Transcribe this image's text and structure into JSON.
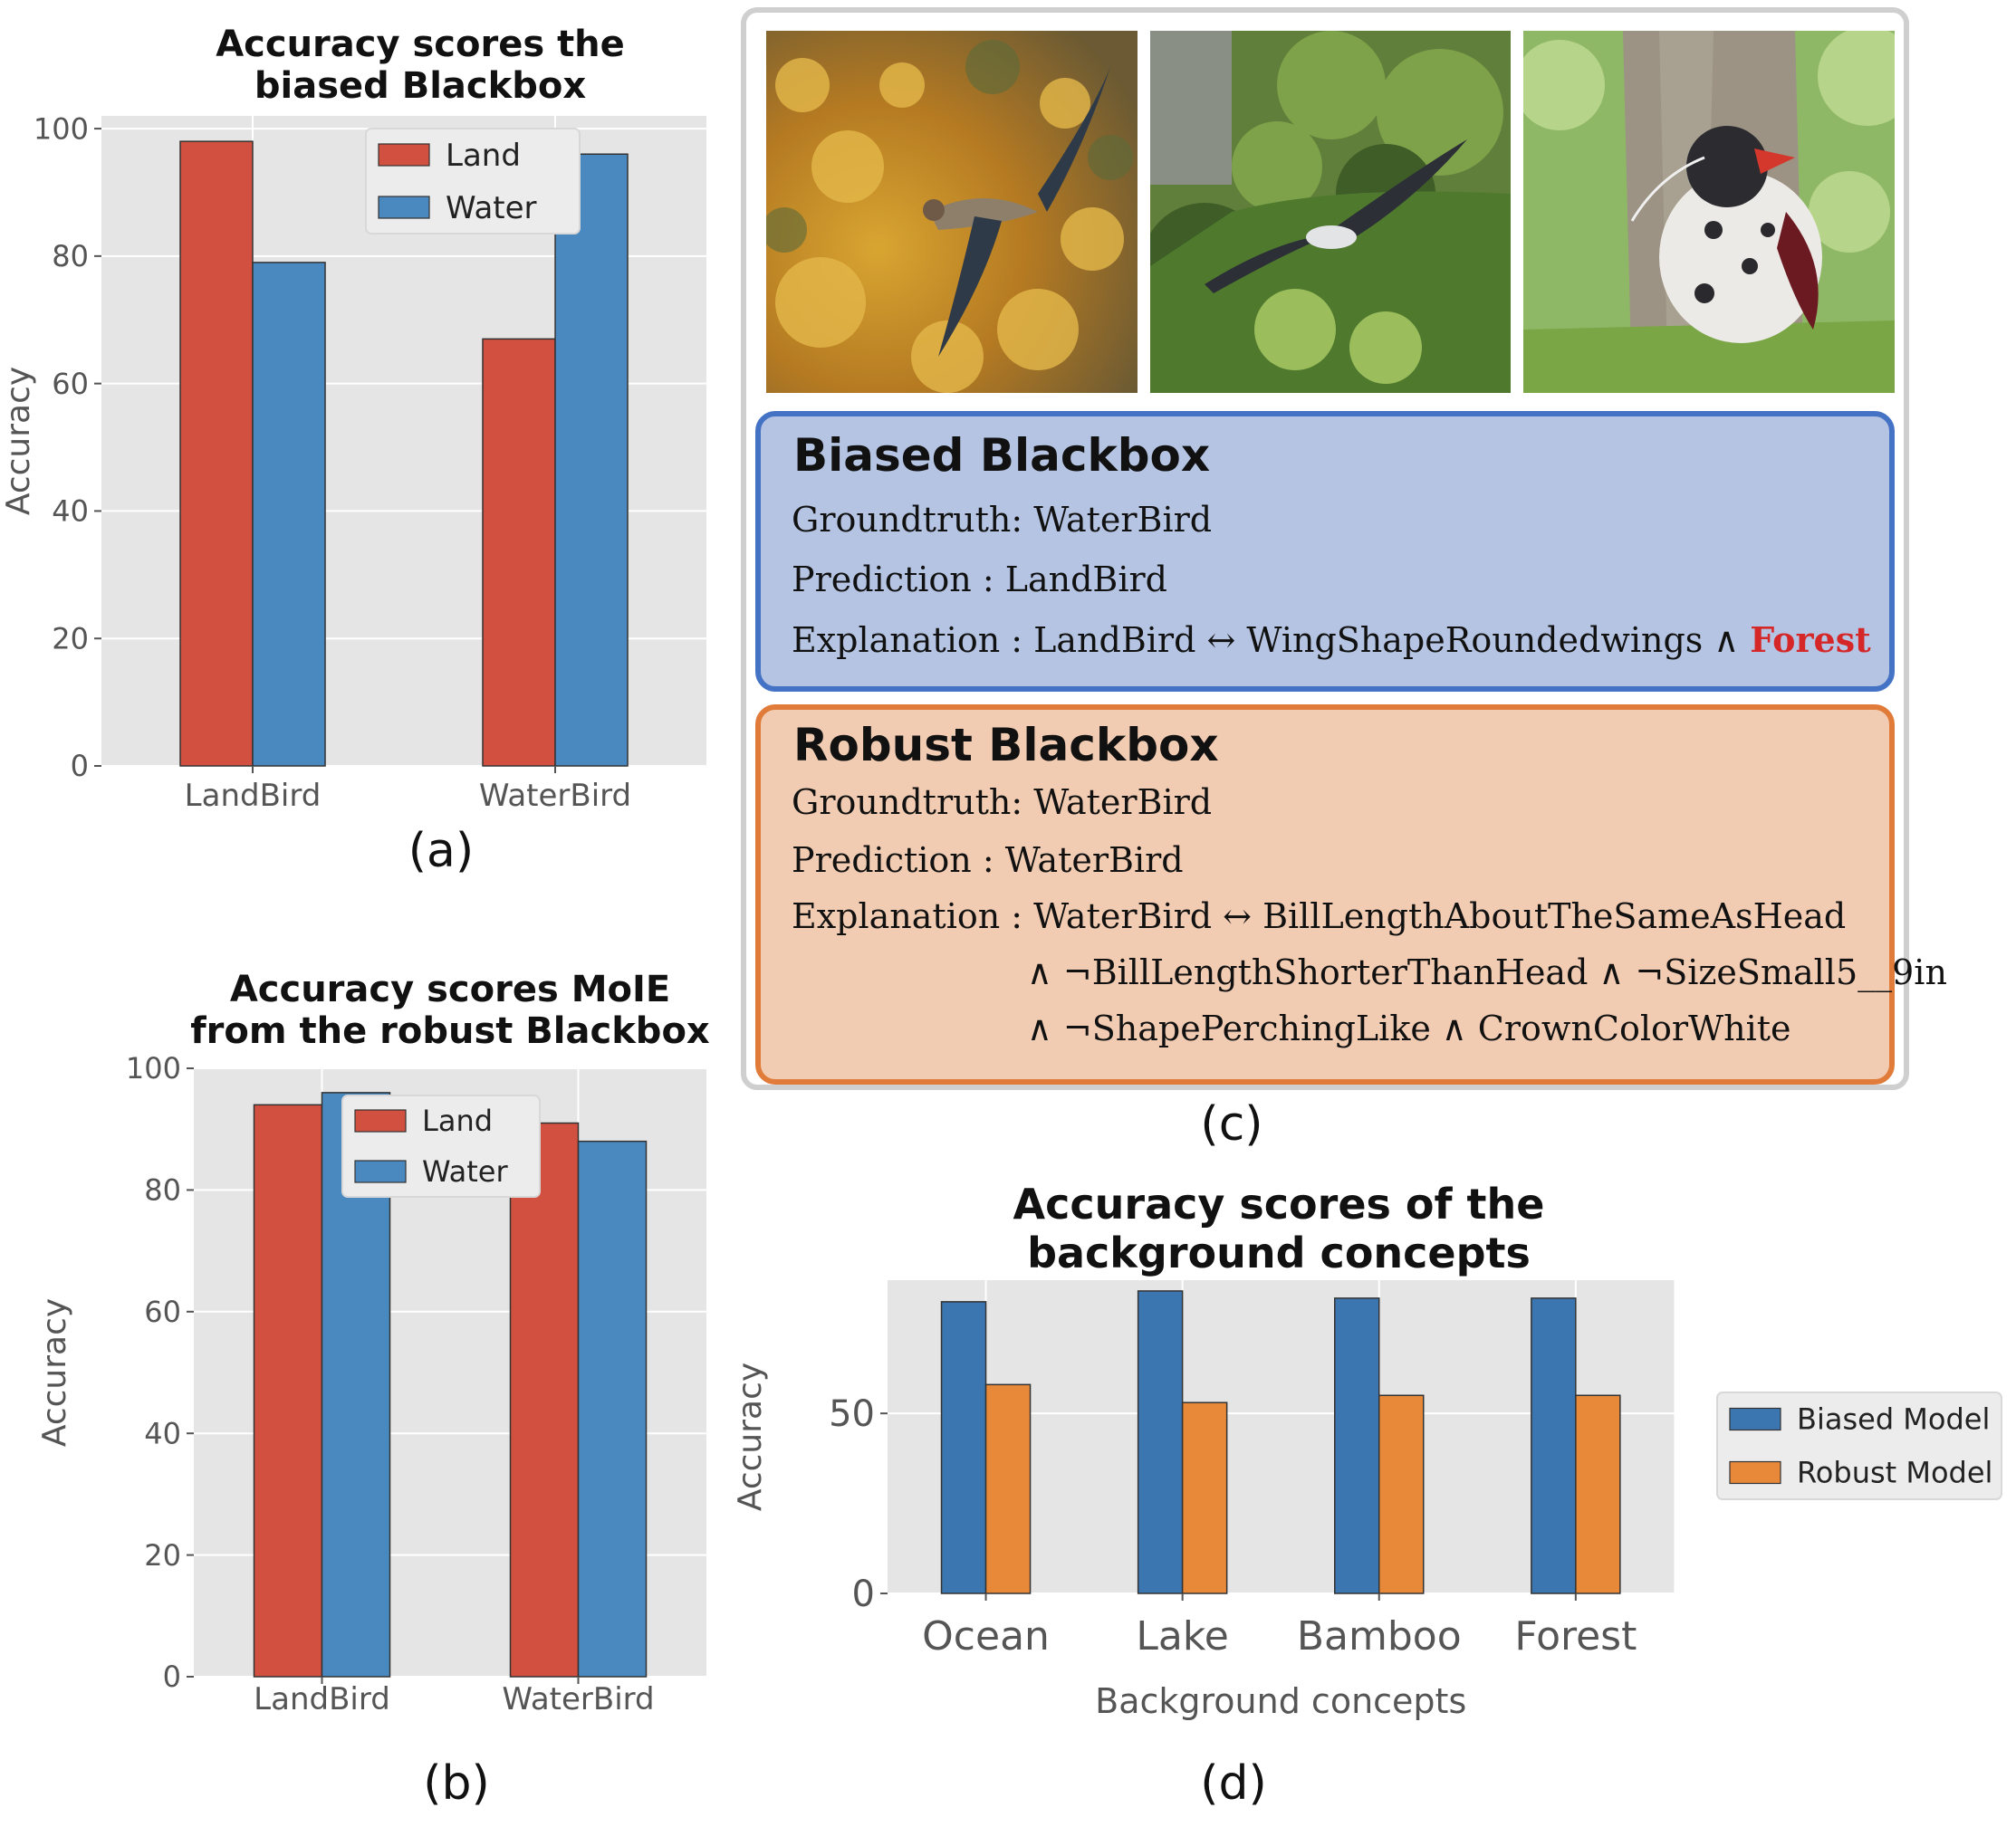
{
  "captions": {
    "a": "(a)",
    "b": "(b)",
    "c": "(c)",
    "d": "(d)"
  },
  "chart_data": [
    {
      "id": "a",
      "type": "bar",
      "title_lines": [
        "Accuracy scores the",
        "biased Blackbox"
      ],
      "ylabel": "Accuracy",
      "xlabel": "",
      "categories": [
        "LandBird",
        "WaterBird"
      ],
      "series": [
        {
          "name": "Land",
          "values": [
            98,
            67
          ],
          "color": "#d1503f"
        },
        {
          "name": "Water",
          "values": [
            79,
            96
          ],
          "color": "#4a89bf"
        }
      ],
      "ylim": [
        0,
        102
      ],
      "yticks": [
        0,
        20,
        40,
        60,
        80,
        100
      ],
      "grid": true,
      "legend": "top-center"
    },
    {
      "id": "b",
      "type": "bar",
      "title_lines": [
        "Accuracy scores MoIE",
        "from the robust Blackbox"
      ],
      "ylabel": "Accuracy",
      "xlabel": "",
      "categories": [
        "LandBird",
        "WaterBird"
      ],
      "series": [
        {
          "name": "Land",
          "values": [
            94,
            91
          ],
          "color": "#d1503f"
        },
        {
          "name": "Water",
          "values": [
            96,
            88
          ],
          "color": "#4a89bf"
        }
      ],
      "ylim": [
        0,
        100
      ],
      "yticks": [
        0,
        20,
        40,
        60,
        80,
        100
      ],
      "grid": true,
      "legend": "top-center"
    },
    {
      "id": "d",
      "type": "bar",
      "title_lines": [
        "Accuracy scores of the",
        "background concepts"
      ],
      "ylabel": "Accuracy",
      "xlabel": "Background concepts",
      "categories": [
        "Ocean",
        "Lake",
        "Bamboo",
        "Forest"
      ],
      "series": [
        {
          "name": "Biased Model",
          "values": [
            81,
            84,
            82,
            82
          ],
          "color": "#3c76b0"
        },
        {
          "name": "Robust Model",
          "values": [
            58,
            53,
            55,
            55
          ],
          "color": "#e8893a"
        }
      ],
      "ylim": [
        0,
        87
      ],
      "yticks": [
        0,
        50
      ],
      "grid": true,
      "legend": "outside-right"
    }
  ],
  "panel_c": {
    "biased": {
      "title": "Biased Blackbox",
      "groundtruth": "Groundtruth:  WaterBird",
      "prediction": "Prediction :  LandBird",
      "explanation_prefix": "Explanation : LandBird ↔ WingShapeRoundedwings ∧ ",
      "explanation_highlight": "Forest"
    },
    "robust": {
      "title": "Robust Blackbox",
      "groundtruth": "Groundtruth:  WaterBird",
      "prediction": "Prediction :  WaterBird",
      "explanation_line1": "Explanation : WaterBird ↔ BillLengthAboutTheSameAsHead",
      "explanation_line2": "∧ ¬BillLengthShorterThanHead  ∧ ¬SizeSmall5__9in",
      "explanation_line3": "∧ ¬ShapePerchingLike ∧ CrownColorWhite"
    }
  },
  "colors": {
    "plot_bg": "#e5e5e5",
    "grid": "#ffffff",
    "biased_box": "#b4c4e2",
    "biased_border": "#4472c4",
    "robust_box": "#f2ccb2",
    "robust_border": "#e07b39",
    "forest_highlight": "#d62728"
  }
}
